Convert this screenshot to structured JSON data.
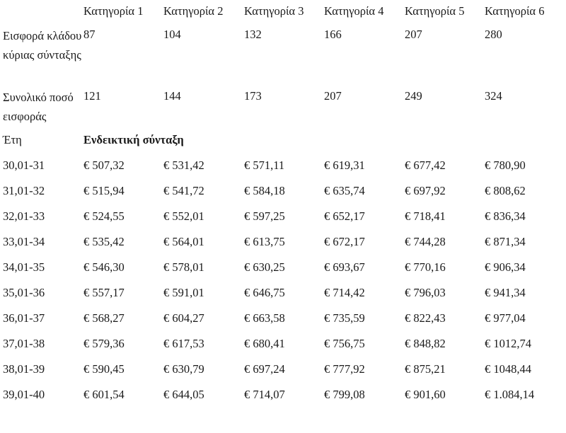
{
  "header": {
    "categories": [
      "Κατηγορία 1",
      "Κατηγορία 2",
      "Κατηγορία 3",
      "Κατηγορία 4",
      "Κατηγορία 5",
      "Κατηγορία 6"
    ]
  },
  "contribution_main": {
    "label": "Εισφορά κλάδου κύριας σύνταξης",
    "values": [
      "87",
      "104",
      "132",
      "166",
      "207",
      "280"
    ]
  },
  "contribution_total": {
    "label": "Συνολικό ποσό εισφοράς",
    "values": [
      "121",
      "144",
      "173",
      "207",
      "249",
      "324"
    ]
  },
  "section": {
    "years_label": "Έτη",
    "pension_label": "Ενδεικτική σύνταξη"
  },
  "pension_rows": [
    {
      "years": "30,01-31",
      "values": [
        "€ 507,32",
        "€ 531,42",
        "€ 571,11",
        "€ 619,31",
        "€ 677,42",
        "€ 780,90"
      ]
    },
    {
      "years": "31,01-32",
      "values": [
        "€ 515,94",
        "€ 541,72",
        "€ 584,18",
        "€ 635,74",
        "€ 697,92",
        "€ 808,62"
      ]
    },
    {
      "years": "32,01-33",
      "values": [
        "€ 524,55",
        "€ 552,01",
        "€ 597,25",
        "€ 652,17",
        "€ 718,41",
        "€ 836,34"
      ]
    },
    {
      "years": "33,01-34",
      "values": [
        "€ 535,42",
        "€ 564,01",
        "€ 613,75",
        "€ 672,17",
        "€ 744,28",
        "€ 871,34"
      ]
    },
    {
      "years": "34,01-35",
      "values": [
        "€ 546,30",
        "€ 578,01",
        "€ 630,25",
        "€ 693,67",
        "€ 770,16",
        "€ 906,34"
      ]
    },
    {
      "years": "35,01-36",
      "values": [
        "€ 557,17",
        "€ 591,01",
        "€ 646,75",
        "€ 714,42",
        "€ 796,03",
        "€ 941,34"
      ]
    },
    {
      "years": "36,01-37",
      "values": [
        "€ 568,27",
        "€ 604,27",
        "€ 663,58",
        "€ 735,59",
        "€ 822,43",
        "€ 977,04"
      ]
    },
    {
      "years": "37,01-38",
      "values": [
        "€ 579,36",
        "€ 617,53",
        "€ 680,41",
        "€ 756,75",
        "€ 848,82",
        "€ 1012,74"
      ]
    },
    {
      "years": "38,01-39",
      "values": [
        "€ 590,45",
        "€ 630,79",
        "€ 697,24",
        "€ 777,92",
        "€ 875,21",
        "€ 1048,44"
      ]
    },
    {
      "years": "39,01-40",
      "values": [
        "€ 601,54",
        "€ 644,05",
        "€ 714,07",
        "€ 799,08",
        "€ 901,60",
        "€ 1.084,14"
      ]
    }
  ]
}
